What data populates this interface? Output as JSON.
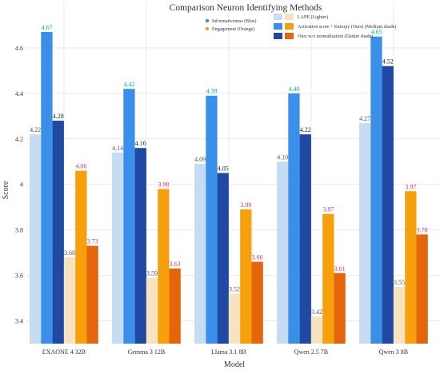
{
  "chart_data": {
    "type": "bar",
    "title": "Comparison Neuron Identifying Methods",
    "xlabel": "Model",
    "ylabel": "Score",
    "ylim": [
      3.3,
      4.8
    ],
    "yticks": [
      3.4,
      3.6,
      3.8,
      4,
      4.2,
      4.4,
      4.6
    ],
    "ytick_labels": [
      "3.4",
      "3.6",
      "3.8",
      "4",
      "4.2",
      "4.4",
      "4.6"
    ],
    "grid": true,
    "categories": [
      "EXAONE 4 32B",
      "Gemma 3 12B",
      "Llama 3.1 8B",
      "Qwen 2.5 7B",
      "Qwen 3 8B"
    ],
    "series": [
      {
        "name": "LAPE (Lighter)",
        "metric": "informativeness",
        "color": "#c6dcf3",
        "label_color": "#555555",
        "values": [
          4.22,
          4.14,
          4.09,
          4.1,
          4.27
        ]
      },
      {
        "name": "Activation score + Entropy (Ours) (Medium shade)",
        "metric": "informativeness",
        "color": "#3a8fe8",
        "label_color": "#0bb37a",
        "values": [
          4.67,
          4.42,
          4.39,
          4.4,
          4.65
        ]
      },
      {
        "name": "Ours w/o normalization (Darker shade)",
        "metric": "informativeness",
        "color": "#2049a4",
        "label_color": "#222222",
        "values": [
          4.28,
          4.16,
          4.05,
          4.22,
          4.52
        ]
      },
      {
        "name": "LAPE (Lighter)",
        "metric": "engagement",
        "color": "#f7e3bf",
        "label_color": "#555555",
        "values": [
          3.68,
          3.59,
          3.52,
          3.42,
          3.55
        ]
      },
      {
        "name": "Activation score + Entropy (Ours) (Medium shade)",
        "metric": "engagement",
        "color": "#f6a00d",
        "label_color": "#e0307a",
        "values": [
          4.06,
          3.98,
          3.89,
          3.87,
          3.97
        ]
      },
      {
        "name": "Ours w/o normalization (Darker shade)",
        "metric": "engagement",
        "color": "#e4650b",
        "label_color": "#e0307a",
        "values": [
          3.73,
          3.63,
          3.66,
          3.61,
          3.78
        ]
      }
    ],
    "value_labels": [
      [
        "4.22",
        "4.67",
        "4.28",
        "3.68",
        "4.06",
        "3.73"
      ],
      [
        "4.14",
        "4.42",
        "4.16",
        "3.59",
        "3.98",
        "3.63"
      ],
      [
        "4.09",
        "4.39",
        "4.05",
        "3.52",
        "3.89",
        "3.66"
      ],
      [
        "4.10",
        "4.40",
        "4.22",
        "3.42",
        "3.87",
        "3.61"
      ],
      [
        "4.27",
        "4.65",
        "4.52",
        "3.55",
        "3.97",
        "3.78"
      ]
    ],
    "legend": {
      "placement": "top-center",
      "metrics": [
        {
          "label": "Informativeness (Blue)",
          "color": "#3a8fe8"
        },
        {
          "label": "Engagement (Orange)",
          "color": "#f6a00d"
        }
      ],
      "methods": [
        {
          "label": "LAPE (Lighter)",
          "colors": [
            "#c6dcf3",
            "#f7e3bf"
          ]
        },
        {
          "label": "Activation score + Entropy (Ours) (Medium shade)",
          "colors": [
            "#3a8fe8",
            "#f6a00d"
          ]
        },
        {
          "label": "Ours w/o normalization (Darker shade)",
          "colors": [
            "#2049a4",
            "#e4650b"
          ]
        }
      ]
    }
  }
}
